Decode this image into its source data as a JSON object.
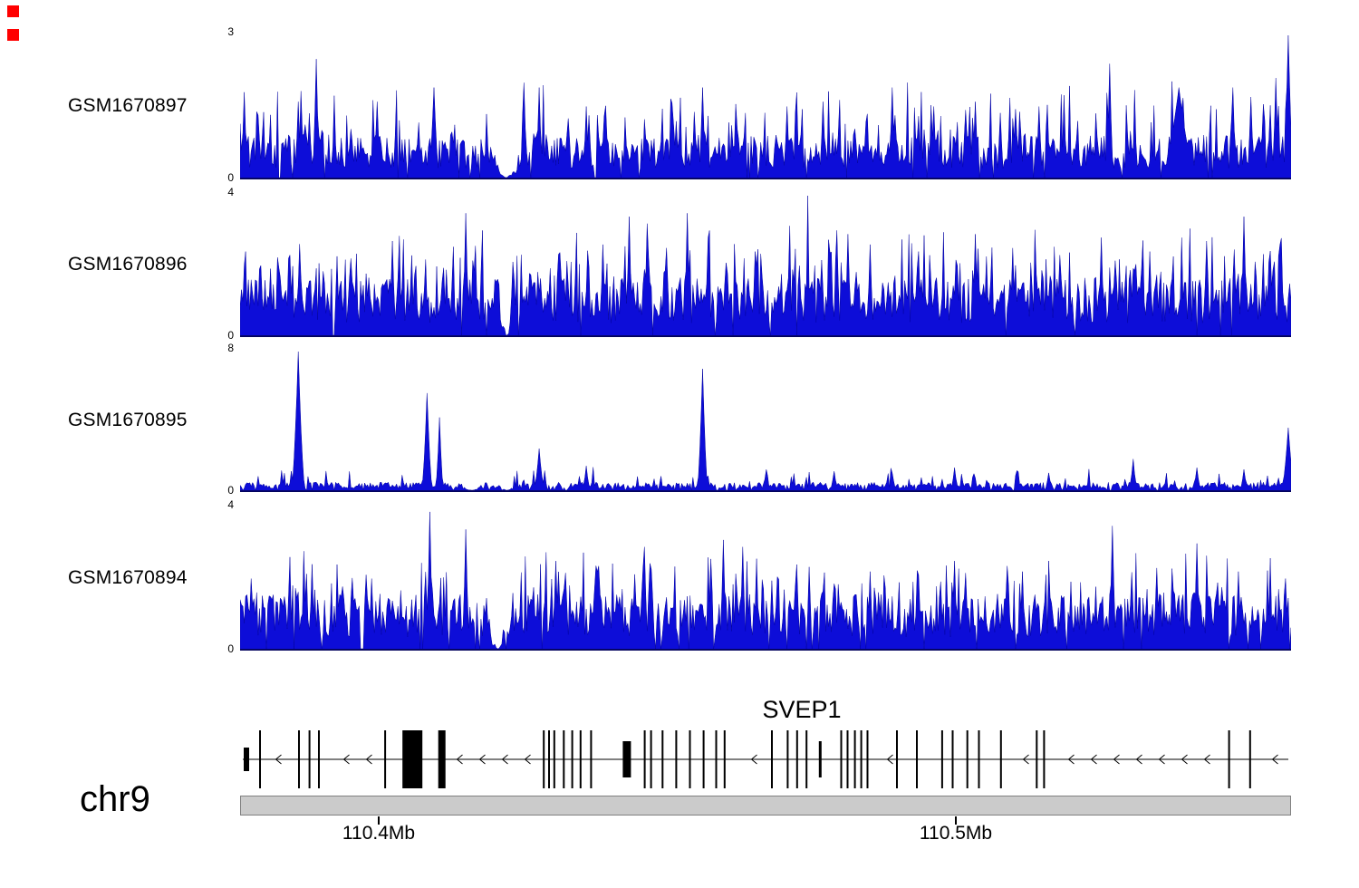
{
  "window": {
    "background": "#ffffff"
  },
  "markers": [
    {
      "name": "red-square-marker",
      "color": "#ff0000"
    },
    {
      "name": "red-square-marker",
      "color": "#ff0000"
    }
  ],
  "chart_data": {
    "type": "area",
    "description": "Genome-browser read coverage for four samples over the SVEP1 locus on chr9",
    "signal_color": "#0d0dd8",
    "signal_stroke": "#0000a0",
    "x_axis": {
      "chromosome": "chr9",
      "range_mb": [
        110.376,
        110.558
      ],
      "ticks": [
        {
          "mb": 110.4,
          "label": "110.4Mb"
        },
        {
          "mb": 110.5,
          "label": "110.5Mb"
        }
      ]
    },
    "tracks": [
      {
        "name": "GSM1670897",
        "ylim": [
          0,
          3
        ],
        "ymax_label": "3",
        "ymin_label": "0",
        "seed": 101,
        "base": 0.55,
        "spike_p": 0.18,
        "spike_h": 0.9,
        "zero_p": 0.05,
        "gaps": [
          [
            0.238,
            0.268
          ]
        ],
        "peaks": [
          {
            "x": 0.004,
            "h": 1.8
          },
          {
            "x": 0.055,
            "h": 1.6
          },
          {
            "x": 0.072,
            "h": 2.5
          },
          {
            "x": 0.13,
            "h": 1.6
          },
          {
            "x": 0.185,
            "h": 1.9,
            "w": 3
          },
          {
            "x": 0.27,
            "h": 2.0
          },
          {
            "x": 0.285,
            "h": 1.9
          },
          {
            "x": 0.33,
            "h": 1.5
          },
          {
            "x": 0.44,
            "h": 1.9
          },
          {
            "x": 0.52,
            "h": 1.5
          },
          {
            "x": 0.555,
            "h": 1.6
          },
          {
            "x": 0.62,
            "h": 1.9
          },
          {
            "x": 0.66,
            "h": 1.5
          },
          {
            "x": 0.7,
            "h": 1.6
          },
          {
            "x": 0.76,
            "h": 1.5
          },
          {
            "x": 0.828,
            "h": 2.4
          },
          {
            "x": 0.893,
            "h": 1.9,
            "w": 12
          },
          {
            "x": 0.945,
            "h": 1.9
          },
          {
            "x": 0.962,
            "h": 1.7
          },
          {
            "x": 0.985,
            "h": 2.1
          },
          {
            "x": 0.998,
            "h": 3.0,
            "w": 3
          }
        ]
      },
      {
        "name": "GSM1670896",
        "ylim": [
          0,
          4
        ],
        "ymax_label": "4",
        "ymin_label": "0",
        "seed": 202,
        "base": 1.0,
        "spike_p": 0.22,
        "spike_h": 1.2,
        "zero_p": 0.04,
        "gaps": [
          [
            0.245,
            0.262
          ]
        ],
        "peaks": [
          {
            "x": 0.02,
            "h": 2.0
          },
          {
            "x": 0.047,
            "h": 2.3
          },
          {
            "x": 0.105,
            "h": 2.2
          },
          {
            "x": 0.145,
            "h": 2.7
          },
          {
            "x": 0.215,
            "h": 3.5
          },
          {
            "x": 0.26,
            "h": 2.1
          },
          {
            "x": 0.345,
            "h": 2.6
          },
          {
            "x": 0.37,
            "h": 3.4
          },
          {
            "x": 0.388,
            "h": 3.2
          },
          {
            "x": 0.425,
            "h": 3.5
          },
          {
            "x": 0.445,
            "h": 2.8
          },
          {
            "x": 0.49,
            "h": 2.4
          },
          {
            "x": 0.54,
            "h": 4.0,
            "w": 1
          },
          {
            "x": 0.578,
            "h": 2.9
          },
          {
            "x": 0.6,
            "h": 2.6
          },
          {
            "x": 0.645,
            "h": 2.4
          },
          {
            "x": 0.7,
            "h": 2.9
          },
          {
            "x": 0.735,
            "h": 2.5
          },
          {
            "x": 0.78,
            "h": 2.3
          },
          {
            "x": 0.82,
            "h": 2.8
          },
          {
            "x": 0.865,
            "h": 2.4
          },
          {
            "x": 0.92,
            "h": 2.7
          },
          {
            "x": 0.955,
            "h": 3.4
          },
          {
            "x": 0.99,
            "h": 2.6
          }
        ]
      },
      {
        "name": "GSM1670895",
        "ylim": [
          0,
          8
        ],
        "ymax_label": "8",
        "ymin_label": "0",
        "seed": 303,
        "base": 0.28,
        "spike_p": 0.1,
        "spike_h": 0.7,
        "zero_p": 0.1,
        "gaps": [
          [
            0.21,
            0.23
          ],
          [
            0.245,
            0.262
          ]
        ],
        "peaks": [
          {
            "x": 0.055,
            "h": 8.0,
            "w": 4
          },
          {
            "x": 0.178,
            "h": 5.6,
            "w": 3
          },
          {
            "x": 0.19,
            "h": 4.2,
            "w": 2
          },
          {
            "x": 0.285,
            "h": 2.4,
            "w": 3
          },
          {
            "x": 0.33,
            "h": 1.4
          },
          {
            "x": 0.44,
            "h": 7.0,
            "w": 3
          },
          {
            "x": 0.5,
            "h": 1.2
          },
          {
            "x": 0.565,
            "h": 1.1
          },
          {
            "x": 0.62,
            "h": 1.0
          },
          {
            "x": 0.68,
            "h": 1.3
          },
          {
            "x": 0.77,
            "h": 1.0
          },
          {
            "x": 0.85,
            "h": 1.8
          },
          {
            "x": 0.91,
            "h": 1.3
          },
          {
            "x": 0.955,
            "h": 1.2
          },
          {
            "x": 0.998,
            "h": 3.6,
            "w": 4
          }
        ]
      },
      {
        "name": "GSM1670894",
        "ylim": [
          0,
          4
        ],
        "ymax_label": "4",
        "ymin_label": "0",
        "seed": 404,
        "base": 0.95,
        "spike_p": 0.2,
        "spike_h": 1.1,
        "zero_p": 0.05,
        "gaps": [
          [
            0.235,
            0.255
          ]
        ],
        "peaks": [
          {
            "x": 0.01,
            "h": 2.0
          },
          {
            "x": 0.06,
            "h": 1.9
          },
          {
            "x": 0.125,
            "h": 2.0
          },
          {
            "x": 0.18,
            "h": 3.9,
            "w": 2
          },
          {
            "x": 0.215,
            "h": 3.4
          },
          {
            "x": 0.3,
            "h": 2.5
          },
          {
            "x": 0.34,
            "h": 2.2
          },
          {
            "x": 0.385,
            "h": 2.9
          },
          {
            "x": 0.46,
            "h": 3.1
          },
          {
            "x": 0.478,
            "h": 2.9
          },
          {
            "x": 0.53,
            "h": 2.4
          },
          {
            "x": 0.6,
            "h": 2.2
          },
          {
            "x": 0.645,
            "h": 2.1
          },
          {
            "x": 0.68,
            "h": 2.5
          },
          {
            "x": 0.745,
            "h": 2.2
          },
          {
            "x": 0.83,
            "h": 3.5
          },
          {
            "x": 0.872,
            "h": 2.3
          },
          {
            "x": 0.91,
            "h": 3.0
          },
          {
            "x": 0.95,
            "h": 2.2
          },
          {
            "x": 0.995,
            "h": 2.0
          }
        ]
      }
    ],
    "gene_track": {
      "gene_name": "SVEP1",
      "strand": "-",
      "arrow_spacing_px": 25,
      "exons": [
        [
          0.006,
          6,
          26
        ],
        [
          0.019,
          2,
          64
        ],
        [
          0.056,
          2,
          64
        ],
        [
          0.066,
          2,
          64
        ],
        [
          0.075,
          2,
          64
        ],
        [
          0.138,
          2,
          64
        ],
        [
          0.164,
          22,
          64
        ],
        [
          0.192,
          8,
          64
        ],
        [
          0.289,
          2,
          64
        ],
        [
          0.294,
          2,
          64
        ],
        [
          0.299,
          2,
          64
        ],
        [
          0.308,
          2,
          64
        ],
        [
          0.316,
          2,
          64
        ],
        [
          0.324,
          2,
          64
        ],
        [
          0.334,
          2,
          64
        ],
        [
          0.368,
          9,
          40
        ],
        [
          0.385,
          2,
          64
        ],
        [
          0.391,
          2,
          64
        ],
        [
          0.402,
          2,
          64
        ],
        [
          0.415,
          2,
          64
        ],
        [
          0.428,
          2,
          64
        ],
        [
          0.441,
          2,
          64
        ],
        [
          0.453,
          2,
          64
        ],
        [
          0.461,
          2,
          64
        ],
        [
          0.506,
          2,
          64
        ],
        [
          0.521,
          2,
          64
        ],
        [
          0.53,
          2,
          64
        ],
        [
          0.539,
          2,
          64
        ],
        [
          0.552,
          3,
          40
        ],
        [
          0.572,
          2,
          64
        ],
        [
          0.578,
          2,
          64
        ],
        [
          0.585,
          2,
          64
        ],
        [
          0.591,
          2,
          64
        ],
        [
          0.597,
          2,
          64
        ],
        [
          0.625,
          2,
          64
        ],
        [
          0.644,
          2,
          64
        ],
        [
          0.668,
          2,
          64
        ],
        [
          0.678,
          2,
          64
        ],
        [
          0.692,
          2,
          64
        ],
        [
          0.703,
          2,
          64
        ],
        [
          0.724,
          2,
          64
        ],
        [
          0.758,
          2,
          64
        ],
        [
          0.765,
          2,
          64
        ],
        [
          0.941,
          2,
          64
        ],
        [
          0.961,
          2,
          64
        ]
      ]
    },
    "ideogram": {
      "color": "#cbcbcb",
      "border": "#808080"
    }
  }
}
